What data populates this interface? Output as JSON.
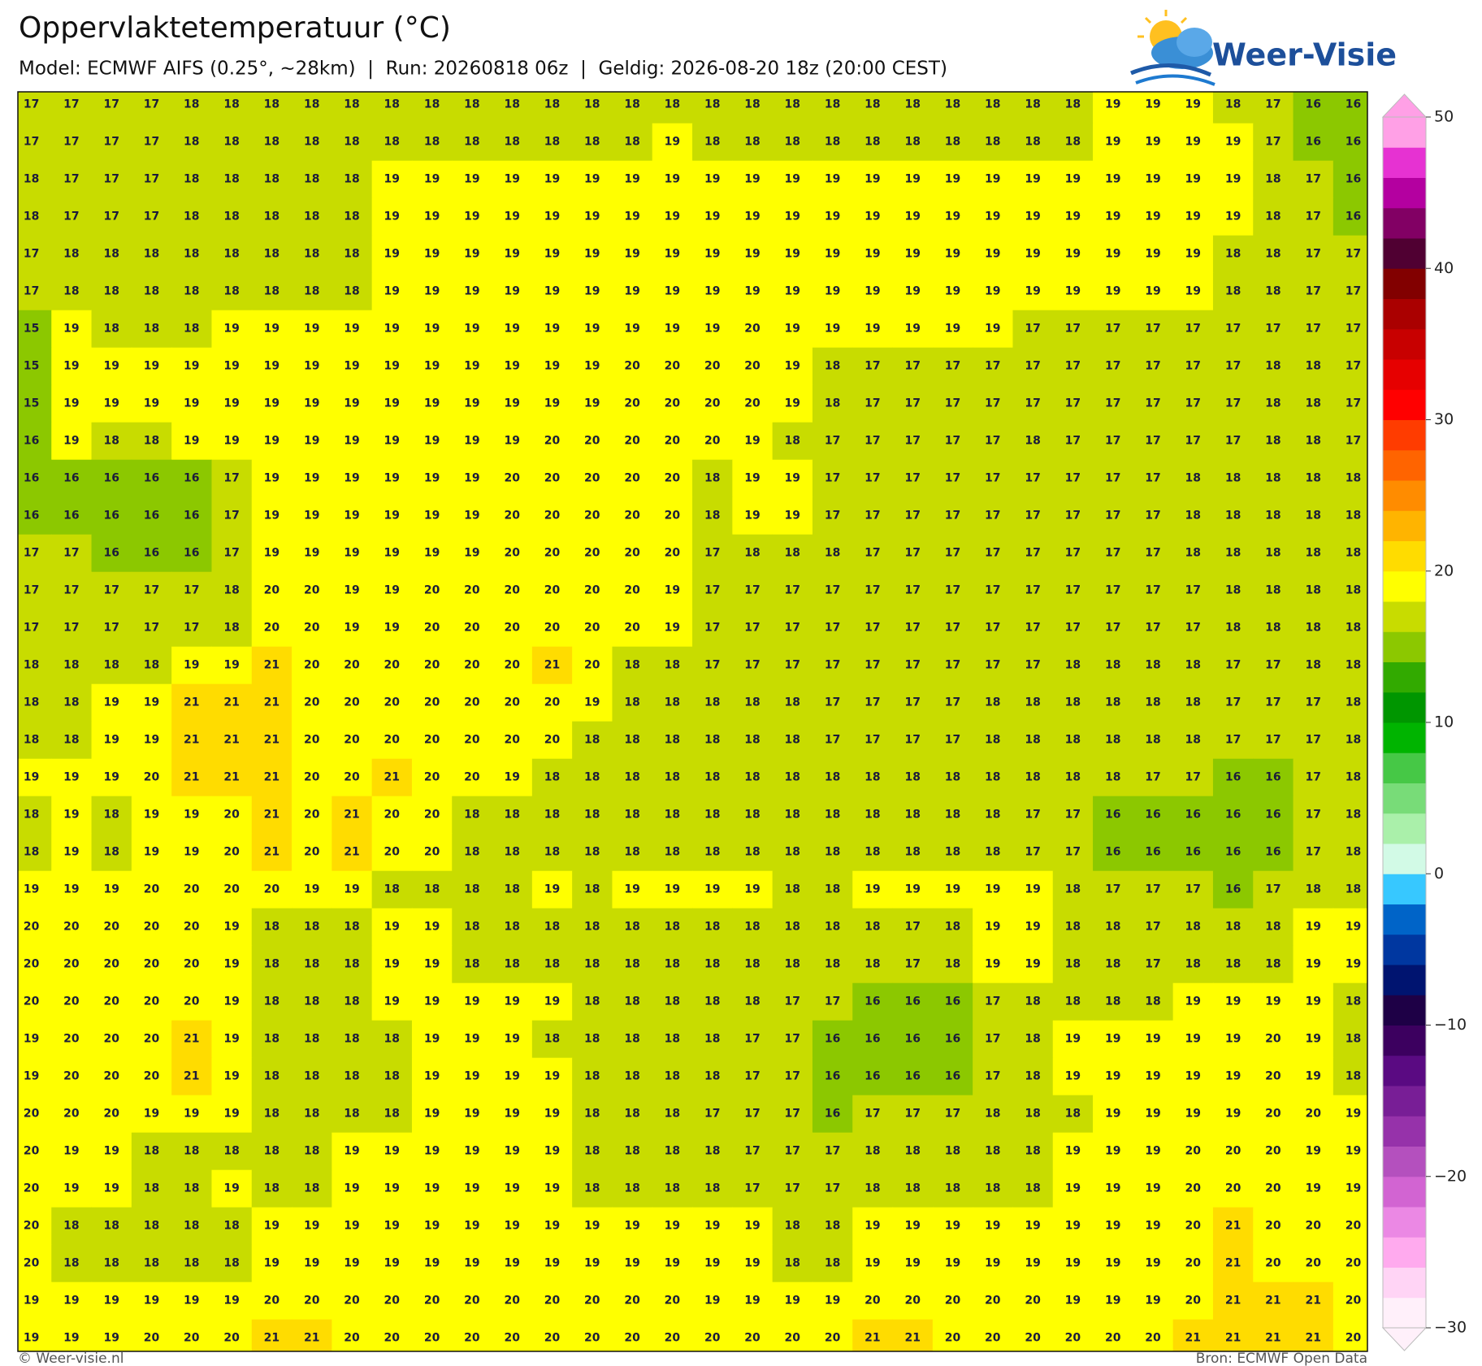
{
  "header": {
    "title": "Oppervlaktetemperatuur (°C)",
    "subtitle": "Model: ECMWF AIFS (0.25°, ~28km)  |  Run: 20260818 06z  |  Geldig: 2026-08-20 18z (20:00 CEST)"
  },
  "logo": "Weer-Visie",
  "map": {
    "rows": [
      [
        17,
        17,
        17,
        17,
        18,
        18,
        18,
        18,
        18,
        18,
        18,
        18,
        18,
        18,
        18,
        18,
        18,
        18,
        18,
        18,
        18,
        18,
        18,
        18,
        18,
        18,
        18,
        19,
        19,
        19,
        18,
        17,
        16,
        16
      ],
      [
        17,
        17,
        17,
        17,
        18,
        18,
        18,
        18,
        18,
        18,
        18,
        18,
        18,
        18,
        18,
        18,
        19,
        18,
        18,
        18,
        18,
        18,
        18,
        18,
        18,
        18,
        18,
        19,
        19,
        19,
        19,
        17,
        16,
        16
      ],
      [
        18,
        17,
        17,
        17,
        18,
        18,
        18,
        18,
        18,
        19,
        19,
        19,
        19,
        19,
        19,
        19,
        19,
        19,
        19,
        19,
        19,
        19,
        19,
        19,
        19,
        19,
        19,
        19,
        19,
        19,
        19,
        18,
        17,
        16
      ],
      [
        18,
        17,
        17,
        17,
        18,
        18,
        18,
        18,
        18,
        19,
        19,
        19,
        19,
        19,
        19,
        19,
        19,
        19,
        19,
        19,
        19,
        19,
        19,
        19,
        19,
        19,
        19,
        19,
        19,
        19,
        19,
        18,
        17,
        16
      ],
      [
        17,
        18,
        18,
        18,
        18,
        18,
        18,
        18,
        18,
        19,
        19,
        19,
        19,
        19,
        19,
        19,
        19,
        19,
        19,
        19,
        19,
        19,
        19,
        19,
        19,
        19,
        19,
        19,
        19,
        19,
        18,
        18,
        17,
        17
      ],
      [
        17,
        18,
        18,
        18,
        18,
        18,
        18,
        18,
        18,
        19,
        19,
        19,
        19,
        19,
        19,
        19,
        19,
        19,
        19,
        19,
        19,
        19,
        19,
        19,
        19,
        19,
        19,
        19,
        19,
        19,
        18,
        18,
        17,
        17
      ],
      [
        15,
        19,
        18,
        18,
        18,
        19,
        19,
        19,
        19,
        19,
        19,
        19,
        19,
        19,
        19,
        19,
        19,
        19,
        20,
        19,
        19,
        19,
        19,
        19,
        19,
        17,
        17,
        17,
        17,
        17,
        17,
        17,
        17,
        17
      ],
      [
        15,
        19,
        19,
        19,
        19,
        19,
        19,
        19,
        19,
        19,
        19,
        19,
        19,
        19,
        19,
        20,
        20,
        20,
        20,
        19,
        18,
        17,
        17,
        17,
        17,
        17,
        17,
        17,
        17,
        17,
        17,
        18,
        18,
        17
      ],
      [
        15,
        19,
        19,
        19,
        19,
        19,
        19,
        19,
        19,
        19,
        19,
        19,
        19,
        19,
        19,
        20,
        20,
        20,
        20,
        19,
        18,
        17,
        17,
        17,
        17,
        17,
        17,
        17,
        17,
        17,
        17,
        18,
        18,
        17
      ],
      [
        16,
        19,
        18,
        18,
        19,
        19,
        19,
        19,
        19,
        19,
        19,
        19,
        19,
        20,
        20,
        20,
        20,
        20,
        19,
        18,
        17,
        17,
        17,
        17,
        17,
        18,
        17,
        17,
        17,
        17,
        17,
        18,
        18,
        17
      ],
      [
        16,
        16,
        16,
        16,
        16,
        17,
        19,
        19,
        19,
        19,
        19,
        19,
        20,
        20,
        20,
        20,
        20,
        18,
        19,
        19,
        17,
        17,
        17,
        17,
        17,
        17,
        17,
        17,
        17,
        18,
        18,
        18,
        18,
        18
      ],
      [
        16,
        16,
        16,
        16,
        16,
        17,
        19,
        19,
        19,
        19,
        19,
        19,
        20,
        20,
        20,
        20,
        20,
        18,
        19,
        19,
        17,
        17,
        17,
        17,
        17,
        17,
        17,
        17,
        17,
        18,
        18,
        18,
        18,
        18
      ],
      [
        17,
        17,
        16,
        16,
        16,
        17,
        19,
        19,
        19,
        19,
        19,
        19,
        20,
        20,
        20,
        20,
        20,
        17,
        18,
        18,
        18,
        17,
        17,
        17,
        17,
        17,
        17,
        17,
        17,
        18,
        18,
        18,
        18,
        18
      ],
      [
        17,
        17,
        17,
        17,
        17,
        18,
        20,
        20,
        19,
        19,
        20,
        20,
        20,
        20,
        20,
        20,
        19,
        17,
        17,
        17,
        17,
        17,
        17,
        17,
        17,
        17,
        17,
        17,
        17,
        17,
        18,
        18,
        18,
        18
      ],
      [
        17,
        17,
        17,
        17,
        17,
        18,
        20,
        20,
        19,
        19,
        20,
        20,
        20,
        20,
        20,
        20,
        19,
        17,
        17,
        17,
        17,
        17,
        17,
        17,
        17,
        17,
        17,
        17,
        17,
        17,
        18,
        18,
        18,
        18
      ],
      [
        18,
        18,
        18,
        18,
        19,
        19,
        21,
        20,
        20,
        20,
        20,
        20,
        20,
        21,
        20,
        18,
        18,
        17,
        17,
        17,
        17,
        17,
        17,
        17,
        17,
        17,
        18,
        18,
        18,
        18,
        17,
        17,
        18,
        18
      ],
      [
        18,
        18,
        19,
        19,
        21,
        21,
        21,
        20,
        20,
        20,
        20,
        20,
        20,
        20,
        19,
        18,
        18,
        18,
        18,
        18,
        17,
        17,
        17,
        17,
        18,
        18,
        18,
        18,
        18,
        18,
        17,
        17,
        17,
        18
      ],
      [
        18,
        18,
        19,
        19,
        21,
        21,
        21,
        20,
        20,
        20,
        20,
        20,
        20,
        20,
        18,
        18,
        18,
        18,
        18,
        18,
        17,
        17,
        17,
        17,
        18,
        18,
        18,
        18,
        18,
        18,
        17,
        17,
        17,
        18
      ],
      [
        19,
        19,
        19,
        20,
        21,
        21,
        21,
        20,
        20,
        21,
        20,
        20,
        19,
        18,
        18,
        18,
        18,
        18,
        18,
        18,
        18,
        18,
        18,
        18,
        18,
        18,
        18,
        18,
        17,
        17,
        16,
        16,
        17,
        18
      ],
      [
        18,
        19,
        18,
        19,
        19,
        20,
        21,
        20,
        21,
        20,
        20,
        18,
        18,
        18,
        18,
        18,
        18,
        18,
        18,
        18,
        18,
        18,
        18,
        18,
        18,
        17,
        17,
        16,
        16,
        16,
        16,
        16,
        17,
        18
      ],
      [
        18,
        19,
        18,
        19,
        19,
        20,
        21,
        20,
        21,
        20,
        20,
        18,
        18,
        18,
        18,
        18,
        18,
        18,
        18,
        18,
        18,
        18,
        18,
        18,
        18,
        17,
        17,
        16,
        16,
        16,
        16,
        16,
        17,
        18
      ],
      [
        19,
        19,
        19,
        20,
        20,
        20,
        20,
        19,
        19,
        18,
        18,
        18,
        18,
        19,
        18,
        19,
        19,
        19,
        19,
        18,
        18,
        19,
        19,
        19,
        19,
        19,
        18,
        17,
        17,
        17,
        16,
        17,
        18,
        18
      ],
      [
        20,
        20,
        20,
        20,
        20,
        19,
        18,
        18,
        18,
        19,
        19,
        18,
        18,
        18,
        18,
        18,
        18,
        18,
        18,
        18,
        18,
        18,
        17,
        18,
        19,
        19,
        18,
        18,
        17,
        18,
        18,
        18,
        19,
        19
      ],
      [
        20,
        20,
        20,
        20,
        20,
        19,
        18,
        18,
        18,
        19,
        19,
        18,
        18,
        18,
        18,
        18,
        18,
        18,
        18,
        18,
        18,
        18,
        17,
        18,
        19,
        19,
        18,
        18,
        17,
        18,
        18,
        18,
        19,
        19
      ],
      [
        20,
        20,
        20,
        20,
        20,
        19,
        18,
        18,
        18,
        19,
        19,
        19,
        19,
        19,
        18,
        18,
        18,
        18,
        18,
        17,
        17,
        16,
        16,
        16,
        17,
        18,
        18,
        18,
        18,
        19,
        19,
        19,
        19,
        18
      ],
      [
        19,
        20,
        20,
        20,
        21,
        19,
        18,
        18,
        18,
        18,
        19,
        19,
        19,
        18,
        18,
        18,
        18,
        18,
        17,
        17,
        16,
        16,
        16,
        16,
        17,
        18,
        19,
        19,
        19,
        19,
        19,
        20,
        19,
        18
      ],
      [
        19,
        20,
        20,
        20,
        21,
        19,
        18,
        18,
        18,
        18,
        19,
        19,
        19,
        19,
        18,
        18,
        18,
        18,
        17,
        17,
        16,
        16,
        16,
        16,
        17,
        18,
        19,
        19,
        19,
        19,
        19,
        20,
        19,
        18
      ],
      [
        20,
        20,
        20,
        19,
        19,
        19,
        18,
        18,
        18,
        18,
        19,
        19,
        19,
        19,
        18,
        18,
        18,
        17,
        17,
        17,
        16,
        17,
        17,
        17,
        18,
        18,
        18,
        19,
        19,
        19,
        19,
        20,
        20,
        19
      ],
      [
        20,
        19,
        19,
        18,
        18,
        18,
        18,
        18,
        19,
        19,
        19,
        19,
        19,
        19,
        18,
        18,
        18,
        18,
        17,
        17,
        17,
        18,
        18,
        18,
        18,
        18,
        19,
        19,
        19,
        20,
        20,
        20,
        19,
        19
      ],
      [
        20,
        19,
        19,
        18,
        18,
        19,
        18,
        18,
        19,
        19,
        19,
        19,
        19,
        19,
        18,
        18,
        18,
        18,
        17,
        17,
        17,
        18,
        18,
        18,
        18,
        18,
        19,
        19,
        19,
        20,
        20,
        20,
        19,
        19
      ],
      [
        20,
        18,
        18,
        18,
        18,
        18,
        19,
        19,
        19,
        19,
        19,
        19,
        19,
        19,
        19,
        19,
        19,
        19,
        19,
        18,
        18,
        19,
        19,
        19,
        19,
        19,
        19,
        19,
        19,
        20,
        21,
        20,
        20,
        20
      ],
      [
        20,
        18,
        18,
        18,
        18,
        18,
        19,
        19,
        19,
        19,
        19,
        19,
        19,
        19,
        19,
        19,
        19,
        19,
        19,
        18,
        18,
        19,
        19,
        19,
        19,
        19,
        19,
        19,
        19,
        20,
        21,
        20,
        20,
        20
      ],
      [
        19,
        19,
        19,
        19,
        19,
        19,
        20,
        20,
        20,
        20,
        20,
        20,
        20,
        20,
        20,
        20,
        20,
        19,
        19,
        19,
        19,
        20,
        20,
        20,
        20,
        20,
        19,
        19,
        19,
        20,
        21,
        21,
        21,
        20
      ],
      [
        19,
        19,
        19,
        20,
        20,
        20,
        21,
        21,
        20,
        20,
        20,
        20,
        20,
        20,
        20,
        20,
        20,
        20,
        20,
        20,
        20,
        21,
        21,
        20,
        20,
        20,
        20,
        20,
        20,
        21,
        21,
        21,
        21,
        20
      ]
    ]
  },
  "colorbar": {
    "lim": [
      -30,
      50
    ],
    "ticks": [
      50,
      40,
      30,
      20,
      10,
      0,
      {
        "value": -10,
        "label": "−10"
      },
      {
        "value": -20,
        "label": "−20"
      },
      {
        "value": -30,
        "label": "−30"
      }
    ],
    "colors": [
      "#fff0fa",
      "#ffd4f5",
      "#ffaaee",
      "#eb88e4",
      "#d264d2",
      "#b450be",
      "#9632aa",
      "#781e96",
      "#5a0a82",
      "#3c005f",
      "#1e0046",
      "#001470",
      "#0037a0",
      "#0064c8",
      "#37c8ff",
      "#d2fae6",
      "#aaf0aa",
      "#78dc78",
      "#46c846",
      "#00b400",
      "#009600",
      "#32aa00",
      "#8cc800",
      "#c8dc00",
      "#ffff00",
      "#ffdc00",
      "#ffb400",
      "#ff8c00",
      "#ff6400",
      "#ff3c00",
      "#ff0000",
      "#e60000",
      "#c80000",
      "#aa0000",
      "#820000",
      "#500032",
      "#820064",
      "#b400a0",
      "#e632d2",
      "#ffa0e6"
    ]
  },
  "footer": {
    "left": "© Weer-visie.nl",
    "right": "Bron: ECMWF Open Data"
  }
}
